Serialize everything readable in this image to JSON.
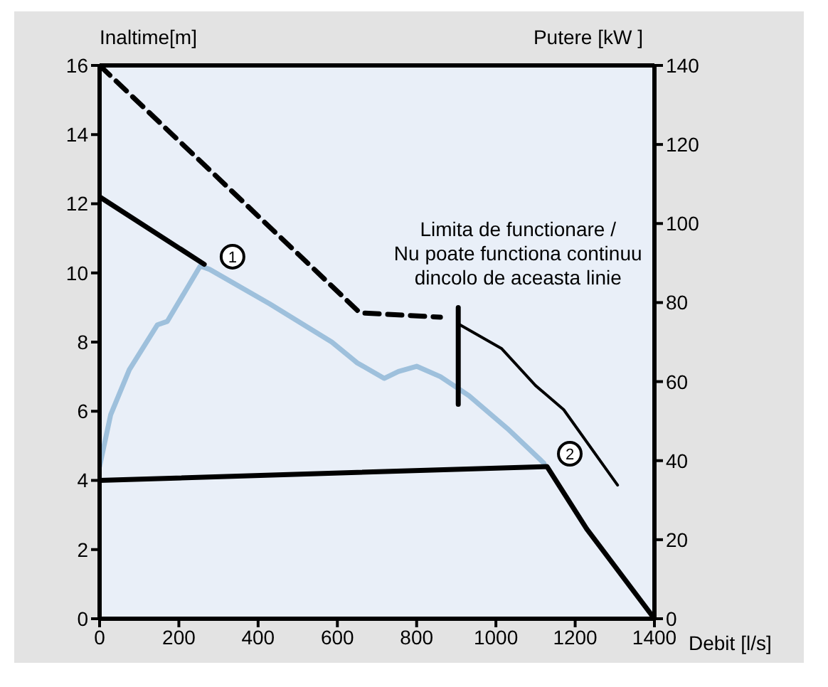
{
  "chart_data": {
    "type": "line",
    "xlabel": "Debit [l/s]",
    "ylabel": "Inaltime[m]",
    "y2label": "Putere [kW ]",
    "xlim": [
      0,
      1400
    ],
    "xticks": [
      0,
      200,
      400,
      600,
      800,
      1000,
      1200,
      1400
    ],
    "ylim": [
      0,
      16
    ],
    "yticks": [
      0,
      2,
      4,
      6,
      8,
      10,
      12,
      14,
      16
    ],
    "y2lim": [
      0,
      140
    ],
    "y2ticks": [
      0,
      20,
      40,
      60,
      80,
      100,
      120,
      140
    ],
    "legend": false,
    "marker": "none",
    "series": [
      {
        "color": "#9ec0dc",
        "x": [
          0,
          28,
          75,
          146,
          171,
          254,
          278,
          430,
          586,
          650,
          718,
          754,
          800,
          860,
          932,
          1029,
          1121
        ],
        "values": [
          4.4,
          5.9,
          7.2,
          8.5,
          8.6,
          10.2,
          10.1,
          9.1,
          8.0,
          7.4,
          6.95,
          7.15,
          7.3,
          7.0,
          6.45,
          5.5,
          4.5
        ]
      },
      {
        "color": "#000000",
        "x": [
          0,
          264
        ],
        "values": [
          12.2,
          10.25
        ]
      },
      {
        "color": "#000000",
        "x": [
          0,
          1129,
          1229,
          1400
        ],
        "values": [
          4.0,
          4.4,
          2.6,
          0
        ]
      },
      {
        "color": "#000000",
        "axis": "y2",
        "line_style": "dashed",
        "x": [
          0,
          657,
          860
        ],
        "values": [
          140,
          77.4,
          76.3
        ]
      },
      {
        "color": "#000000",
        "axis": "y2",
        "x": [
          907,
          1014,
          1100,
          1171,
          1307
        ],
        "values": [
          74.5,
          68.4,
          59,
          52.9,
          33.8
        ]
      },
      {
        "color": "#000000",
        "x": [
          905,
          905
        ],
        "values": [
          9.0,
          6.2
        ]
      }
    ],
    "annotations": [
      {
        "text": "Limita de functionare /\nNu poate functiona continuu\ndincolo de aceasta linie",
        "x": 905,
        "y": 9.0
      },
      {
        "text": "1",
        "x": 278,
        "y": 10.1
      },
      {
        "text": "2",
        "x": 1129,
        "y": 4.4
      }
    ]
  }
}
